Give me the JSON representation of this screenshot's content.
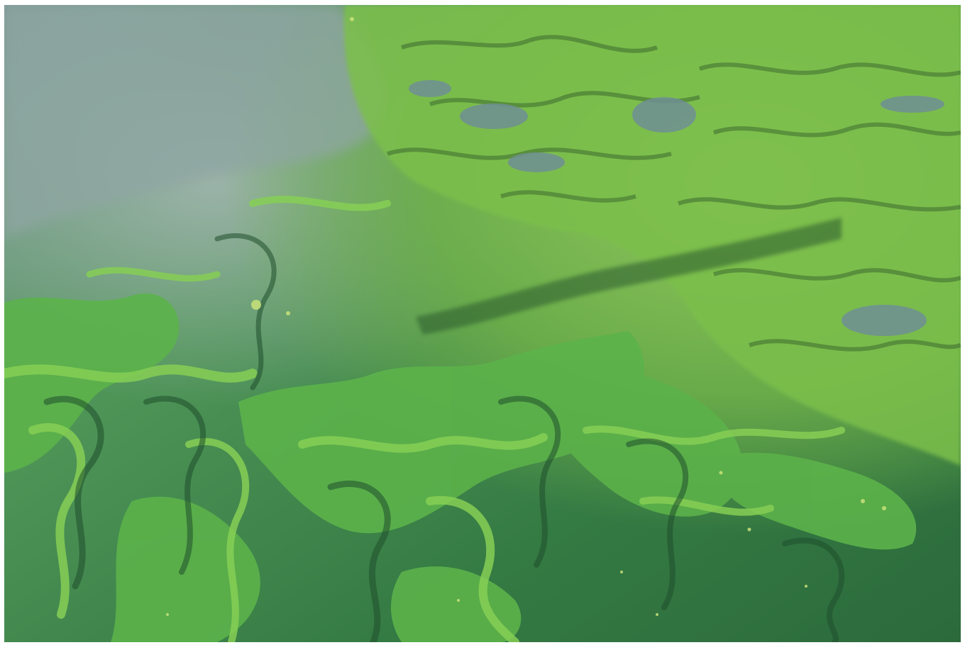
{
  "image": {
    "subject": "algae-bloom-water-surface",
    "palette": {
      "deep_green": "#2f6f3c",
      "mid_green": "#3f8a4c",
      "bright_green": "#5fb24a",
      "lime_green": "#8ed35b",
      "yellow_green": "#a9d86a",
      "grey_blue": "#7f9a98",
      "light_grey": "#9fb1ad",
      "dark_streak": "#1f4f2c"
    }
  }
}
